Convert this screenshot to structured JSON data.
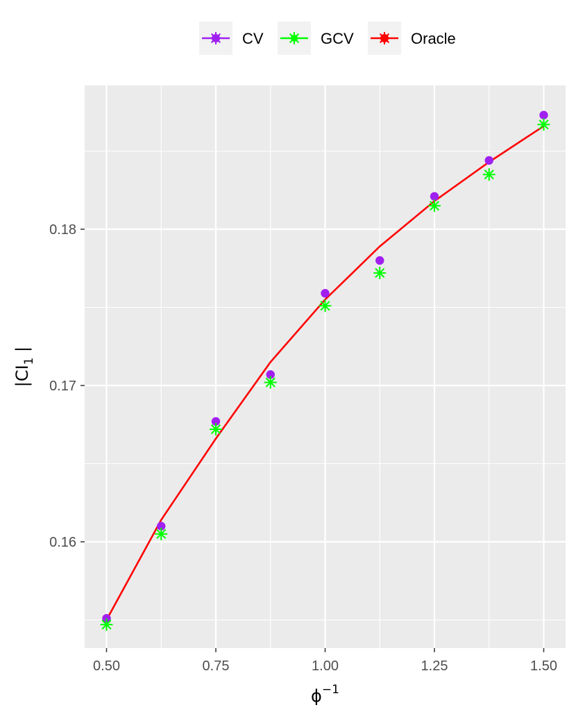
{
  "chart_data": {
    "type": "line",
    "title": "",
    "xlabel": "ϕ",
    "xlabel_superscript": "−1",
    "ylabel": "|CI",
    "ylabel_subscript": "1",
    "ylabel_suffix": " |",
    "xlim": [
      0.45,
      1.55
    ],
    "ylim": [
      0.1532,
      0.1892
    ],
    "x_ticks": [
      0.5,
      0.75,
      1.0,
      1.25,
      1.5
    ],
    "x_tick_labels": [
      "0.50",
      "0.75",
      "1.00",
      "1.25",
      "1.50"
    ],
    "y_ticks": [
      0.16,
      0.17,
      0.18
    ],
    "y_tick_labels": [
      "0.16",
      "0.17",
      "0.18"
    ],
    "grid": true,
    "legend_position": "top",
    "series": [
      {
        "name": "CV",
        "color": "#a020f0",
        "marker": "circle",
        "x": [
          0.5,
          0.625,
          0.75,
          0.875,
          1.0,
          1.125,
          1.25,
          1.375,
          1.5
        ],
        "y": [
          0.1551,
          0.161,
          0.1677,
          0.1707,
          0.1759,
          0.178,
          0.1821,
          0.1844,
          0.1873
        ]
      },
      {
        "name": "GCV",
        "color": "#00ff00",
        "marker": "asterisk",
        "x": [
          0.5,
          0.625,
          0.75,
          0.875,
          1.0,
          1.125,
          1.25,
          1.375,
          1.5
        ],
        "y": [
          0.1547,
          0.1605,
          0.1672,
          0.1702,
          0.1751,
          0.1772,
          0.1815,
          0.1835,
          0.1867
        ]
      },
      {
        "name": "Oracle",
        "color": "#ff0000",
        "marker": "line",
        "x": [
          0.5,
          0.625,
          0.75,
          0.875,
          1.0,
          1.125,
          1.25,
          1.375,
          1.5
        ],
        "y": [
          0.155,
          0.1614,
          0.1666,
          0.1715,
          0.1755,
          0.1789,
          0.1818,
          0.1843,
          0.1866
        ]
      }
    ]
  }
}
